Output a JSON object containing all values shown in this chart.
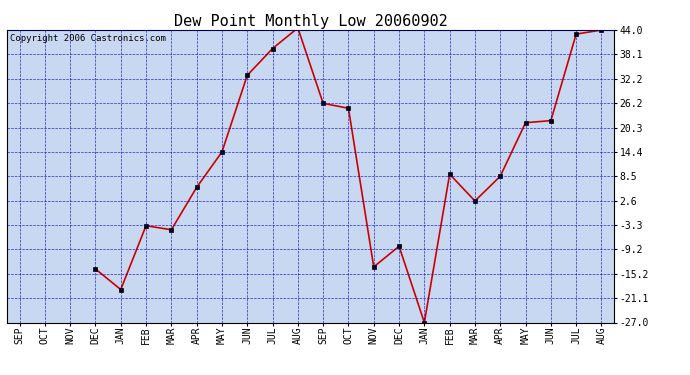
{
  "title": "Dew Point Monthly Low 20060902",
  "copyright": "Copyright 2006 Castronics.com",
  "x_labels": [
    "SEP",
    "OCT",
    "NOV",
    "DEC",
    "JAN",
    "FEB",
    "MAR",
    "APR",
    "MAY",
    "JUN",
    "JUL",
    "AUG",
    "SEP",
    "OCT",
    "NOV",
    "DEC",
    "JAN",
    "FEB",
    "MAR",
    "APR",
    "MAY",
    "JUN",
    "JUL",
    "AUG"
  ],
  "y_values": [
    null,
    null,
    null,
    -14.0,
    -19.0,
    -3.5,
    -4.5,
    5.8,
    14.4,
    33.0,
    39.5,
    44.5,
    26.2,
    25.0,
    -13.5,
    -8.5,
    -27.0,
    9.0,
    2.5,
    8.5,
    21.5,
    22.0,
    43.0,
    44.0
  ],
  "y_ticks": [
    44.0,
    38.1,
    32.2,
    26.2,
    20.3,
    14.4,
    8.5,
    2.6,
    -3.3,
    -9.2,
    -15.2,
    -21.1,
    -27.0
  ],
  "ylim": [
    -27.0,
    44.0
  ],
  "bg_color": "#c8d8f0",
  "line_color": "#cc0000",
  "grid_color": "#0000cc",
  "title_fontsize": 11,
  "copyright_fontsize": 6.5
}
